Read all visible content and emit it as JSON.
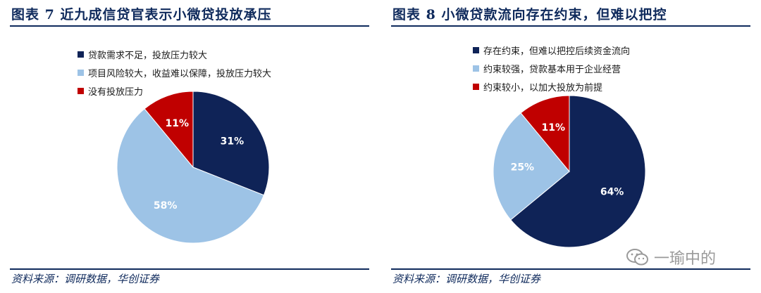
{
  "figures": [
    {
      "title": "图表 7   近九成信贷官表示小微贷投放承压",
      "source": "资料来源：调研数据，华创证券"
    },
    {
      "title": "图表 8   小微贷款流向存在约束，但难以把控",
      "source": "资料来源：调研数据，华创证券"
    }
  ],
  "watermark": {
    "text": "一瑜中的",
    "icon": "wechat-icon"
  },
  "chart_data": [
    {
      "type": "pie",
      "title": "",
      "legend_position": "top-left",
      "slices": [
        {
          "label": "贷款需求不足，投放压力较大",
          "value": 31,
          "display": "31%",
          "color": "#0f2357"
        },
        {
          "label": "项目风险较大，收益难以保障，投放压力较大",
          "value": 58,
          "display": "58%",
          "color": "#9dc3e6"
        },
        {
          "label": "没有投放压力",
          "value": 11,
          "display": "11%",
          "color": "#c00000"
        }
      ]
    },
    {
      "type": "pie",
      "title": "",
      "legend_position": "top-left",
      "slices": [
        {
          "label": "存在约束，但难以把控后续资金流向",
          "value": 64,
          "display": "64%",
          "color": "#0f2357"
        },
        {
          "label": "约束较强，贷款基本用于企业经营",
          "value": 25,
          "display": "25%",
          "color": "#9dc3e6"
        },
        {
          "label": "约束较小，以加大投放为前提",
          "value": 11,
          "display": "11%",
          "color": "#c00000"
        }
      ]
    }
  ]
}
